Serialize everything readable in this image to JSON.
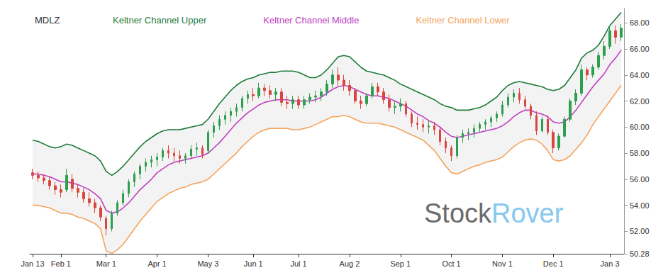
{
  "chart_data": {
    "type": "ohlc",
    "title": "MDLZ",
    "watermark": [
      "Stock",
      "Rover"
    ],
    "legend": "top",
    "grid": false,
    "categories": [
      "Jan 13",
      null,
      null,
      null,
      null,
      "Feb 1",
      null,
      null,
      null,
      null,
      null,
      null,
      null,
      "Mar 1",
      null,
      null,
      null,
      null,
      null,
      null,
      null,
      null,
      "Apr 1",
      null,
      null,
      null,
      null,
      null,
      null,
      null,
      null,
      "May 3",
      null,
      null,
      null,
      null,
      null,
      null,
      null,
      "Jun 1",
      null,
      null,
      null,
      null,
      null,
      null,
      null,
      "Jul 1",
      null,
      null,
      null,
      null,
      null,
      null,
      null,
      null,
      "Aug 2",
      null,
      null,
      null,
      null,
      null,
      null,
      null,
      null,
      "Sep 1",
      null,
      null,
      null,
      null,
      null,
      null,
      null,
      null,
      "Oct 1",
      null,
      null,
      null,
      null,
      null,
      null,
      null,
      null,
      "Nov 1",
      null,
      null,
      null,
      null,
      null,
      null,
      null,
      null,
      "Dec 1",
      null,
      null,
      null,
      null,
      null,
      null,
      null,
      null,
      null,
      "Jan 3",
      null,
      null
    ],
    "ylim": [
      50.28,
      69.1
    ],
    "yticks": [
      {
        "value": 50.28,
        "label": "50.28"
      },
      {
        "value": 52,
        "label": "52.00"
      },
      {
        "value": 54,
        "label": "54.00"
      },
      {
        "value": 56,
        "label": "56.00"
      },
      {
        "value": 58,
        "label": "58.00"
      },
      {
        "value": 60,
        "label": "60.00"
      },
      {
        "value": 62,
        "label": "62.00"
      },
      {
        "value": 64,
        "label": "64.00"
      },
      {
        "value": 66,
        "label": "66.00"
      },
      {
        "value": 68,
        "label": "68.00"
      }
    ],
    "series": [
      {
        "type": "ohlc",
        "open": [
          56.5,
          56.3,
          56.1,
          55.9,
          55.5,
          55.2,
          55.2,
          56.0,
          55.3,
          55.0,
          54.5,
          54.2,
          53.8,
          53.0,
          52.2,
          53.4,
          54.2,
          54.9,
          55.8,
          56.4,
          57.0,
          57.3,
          57.5,
          57.7,
          58.2,
          58.0,
          57.8,
          57.6,
          57.8,
          58.3,
          58.4,
          58.2,
          59.6,
          60.1,
          60.6,
          60.9,
          61.2,
          61.5,
          62.2,
          62.5,
          62.4,
          63.0,
          62.8,
          62.5,
          62.7,
          61.9,
          61.8,
          62.1,
          61.7,
          62.1,
          62.3,
          62.4,
          62.7,
          63.3,
          64.0,
          63.6,
          63.2,
          62.8,
          62.0,
          61.8,
          62.4,
          63.1,
          62.7,
          62.1,
          61.5,
          61.6,
          61.8,
          61.0,
          60.3,
          60.2,
          60.0,
          60.1,
          59.8,
          58.9,
          58.4,
          57.8,
          59.2,
          59.5,
          59.6,
          59.9,
          60.2,
          60.4,
          60.7,
          61.0,
          61.7,
          62.3,
          62.6,
          62.1,
          61.6,
          60.9,
          59.7,
          60.6,
          59.6,
          58.4,
          59.3,
          60.6,
          62.0,
          62.6,
          64.4,
          64.0,
          64.6,
          65.5,
          66.2,
          67.4,
          66.9
        ],
        "high": [
          56.8,
          56.6,
          56.4,
          56.2,
          55.8,
          55.6,
          56.8,
          56.4,
          55.6,
          55.3,
          55.0,
          54.5,
          54.0,
          53.2,
          53.6,
          54.4,
          55.2,
          56.0,
          56.6,
          57.2,
          57.6,
          57.8,
          58.0,
          58.4,
          58.6,
          58.4,
          58.2,
          58.0,
          58.6,
          58.8,
          58.6,
          59.8,
          60.4,
          60.9,
          61.2,
          61.5,
          61.8,
          62.4,
          62.8,
          63.0,
          63.4,
          63.3,
          63.2,
          63.0,
          63.0,
          62.4,
          62.4,
          62.4,
          62.4,
          62.6,
          62.8,
          63.0,
          63.6,
          64.4,
          64.6,
          64.0,
          63.6,
          63.0,
          62.4,
          62.6,
          63.4,
          63.4,
          63.0,
          62.5,
          62.0,
          62.2,
          62.0,
          61.2,
          60.8,
          60.6,
          60.5,
          60.4,
          60.0,
          59.2,
          58.6,
          59.4,
          59.8,
          59.9,
          60.2,
          60.4,
          60.6,
          60.9,
          61.2,
          62.0,
          62.6,
          62.9,
          63.0,
          62.4,
          61.8,
          61.2,
          60.8,
          60.9,
          59.8,
          59.5,
          60.8,
          62.2,
          62.9,
          64.8,
          64.6,
          64.8,
          65.8,
          66.6,
          67.8,
          67.8,
          67.9
        ],
        "low": [
          56.0,
          55.8,
          55.6,
          55.2,
          54.8,
          54.6,
          55.0,
          55.0,
          54.6,
          54.2,
          53.9,
          53.4,
          52.8,
          51.7,
          52.0,
          53.2,
          54.0,
          54.6,
          55.4,
          56.0,
          56.6,
          56.9,
          57.0,
          57.4,
          57.6,
          57.4,
          57.2,
          57.2,
          57.6,
          57.8,
          57.6,
          58.0,
          59.2,
          59.8,
          60.2,
          60.4,
          60.8,
          61.2,
          61.8,
          62.0,
          62.2,
          62.4,
          62.2,
          62.0,
          61.6,
          61.4,
          61.4,
          61.4,
          61.4,
          61.8,
          61.9,
          62.0,
          62.4,
          63.0,
          63.2,
          62.8,
          62.4,
          61.8,
          61.4,
          61.6,
          62.2,
          62.4,
          61.8,
          61.2,
          61.0,
          61.2,
          60.8,
          60.0,
          59.8,
          59.6,
          59.5,
          59.4,
          58.6,
          58.0,
          57.4,
          57.6,
          58.8,
          59.0,
          59.2,
          59.6,
          59.8,
          60.0,
          60.4,
          60.8,
          61.5,
          61.9,
          61.8,
          61.4,
          60.6,
          59.4,
          59.6,
          59.4,
          58.0,
          58.2,
          59.2,
          60.4,
          61.7,
          62.4,
          63.6,
          63.8,
          64.4,
          65.2,
          66.0,
          66.4,
          66.6
        ],
        "close": [
          56.3,
          56.1,
          55.9,
          55.5,
          55.2,
          55.0,
          56.3,
          55.3,
          55.0,
          54.5,
          54.2,
          53.8,
          53.1,
          52.2,
          53.4,
          54.2,
          54.9,
          55.8,
          56.4,
          57.0,
          57.3,
          57.5,
          57.7,
          58.2,
          58.0,
          57.8,
          57.6,
          57.8,
          58.3,
          58.4,
          57.9,
          59.6,
          60.1,
          60.6,
          60.9,
          61.2,
          61.5,
          62.2,
          62.5,
          62.4,
          63.0,
          62.8,
          62.5,
          62.7,
          61.9,
          61.8,
          62.1,
          61.7,
          62.1,
          62.3,
          62.4,
          62.7,
          63.3,
          64.0,
          63.6,
          63.2,
          62.8,
          62.0,
          61.8,
          62.4,
          63.1,
          62.7,
          62.1,
          61.5,
          61.6,
          61.8,
          61.0,
          60.3,
          60.2,
          60.0,
          60.1,
          59.8,
          58.9,
          58.4,
          57.8,
          59.2,
          59.5,
          59.6,
          59.9,
          60.2,
          60.4,
          60.7,
          61.0,
          61.7,
          62.3,
          62.6,
          62.1,
          61.6,
          60.9,
          59.7,
          60.6,
          59.6,
          58.4,
          59.3,
          60.6,
          62.0,
          62.6,
          64.4,
          64.0,
          64.6,
          65.5,
          66.2,
          67.4,
          66.9,
          67.6
        ]
      },
      {
        "name": "Keltner Channel Upper",
        "type": "line",
        "color": "#1e7b3a",
        "values": [
          59.0,
          58.9,
          58.7,
          58.5,
          58.4,
          58.5,
          58.7,
          58.6,
          58.4,
          58.2,
          58.0,
          57.8,
          57.4,
          56.6,
          56.3,
          56.6,
          57.0,
          57.5,
          58.0,
          58.5,
          58.9,
          59.2,
          59.5,
          59.7,
          59.8,
          59.8,
          59.8,
          59.9,
          60.0,
          60.1,
          60.2,
          60.6,
          61.2,
          61.8,
          62.3,
          62.8,
          63.2,
          63.5,
          63.7,
          63.8,
          64.0,
          64.1,
          64.2,
          64.2,
          64.3,
          64.3,
          64.3,
          64.2,
          64.0,
          63.8,
          63.8,
          64.0,
          64.4,
          64.9,
          65.4,
          65.5,
          65.4,
          65.0,
          64.6,
          64.3,
          64.2,
          64.1,
          64.0,
          63.8,
          63.6,
          63.3,
          63.1,
          62.9,
          62.7,
          62.5,
          62.3,
          62.1,
          61.8,
          61.6,
          61.5,
          61.3,
          61.3,
          61.3,
          61.4,
          61.5,
          61.7,
          62.0,
          62.3,
          62.8,
          63.2,
          63.4,
          63.5,
          63.4,
          63.3,
          63.2,
          63.1,
          62.9,
          62.8,
          62.9,
          63.2,
          63.8,
          64.4,
          65.3,
          65.7,
          65.9,
          66.3,
          67.0,
          67.8,
          68.3,
          68.8
        ]
      },
      {
        "name": "Keltner Channel Middle",
        "type": "line",
        "color": "#c23fc2",
        "values": [
          56.4,
          56.4,
          56.3,
          56.2,
          56.0,
          55.8,
          55.8,
          55.7,
          55.6,
          55.4,
          55.2,
          54.9,
          54.5,
          53.6,
          53.4,
          53.5,
          53.8,
          54.2,
          54.7,
          55.2,
          55.6,
          56.0,
          56.5,
          56.8,
          57.1,
          57.3,
          57.4,
          57.5,
          57.6,
          57.7,
          57.8,
          58.0,
          58.4,
          58.8,
          59.3,
          59.8,
          60.3,
          60.7,
          61.1,
          61.4,
          61.7,
          61.9,
          62.0,
          62.1,
          62.1,
          62.1,
          62.0,
          62.0,
          62.0,
          62.0,
          62.1,
          62.3,
          62.6,
          62.9,
          63.1,
          63.2,
          63.1,
          62.9,
          62.7,
          62.5,
          62.4,
          62.4,
          62.3,
          62.2,
          62.0,
          61.8,
          61.6,
          61.3,
          61.0,
          60.8,
          60.5,
          60.3,
          60.0,
          59.6,
          59.3,
          59.2,
          59.3,
          59.4,
          59.5,
          59.6,
          59.7,
          59.8,
          59.9,
          60.1,
          60.4,
          60.8,
          61.1,
          61.3,
          61.3,
          61.1,
          61.0,
          60.8,
          60.4,
          60.3,
          60.4,
          60.8,
          61.3,
          61.9,
          62.5,
          63.1,
          63.6,
          64.1,
          64.8,
          65.3,
          65.9
        ]
      },
      {
        "name": "Keltner Channel Lower",
        "type": "line",
        "color": "#f4a460",
        "values": [
          54.0,
          54.0,
          53.9,
          53.8,
          53.6,
          53.4,
          53.4,
          53.3,
          53.1,
          53.0,
          52.8,
          52.6,
          52.2,
          50.5,
          50.3,
          50.6,
          51.0,
          51.6,
          52.2,
          52.8,
          53.3,
          53.8,
          54.3,
          54.6,
          54.9,
          55.1,
          55.3,
          55.4,
          55.6,
          55.7,
          55.8,
          56.0,
          56.4,
          56.8,
          57.2,
          57.6,
          58.0,
          58.5,
          58.9,
          59.3,
          59.6,
          59.8,
          59.9,
          59.9,
          59.9,
          59.9,
          59.8,
          59.8,
          59.9,
          60.0,
          60.2,
          60.4,
          60.6,
          60.8,
          60.8,
          60.9,
          60.8,
          60.6,
          60.4,
          60.3,
          60.3,
          60.3,
          60.2,
          60.1,
          60.0,
          59.8,
          59.6,
          59.4,
          59.2,
          59.0,
          58.6,
          58.2,
          57.6,
          57.0,
          56.5,
          56.4,
          56.6,
          56.8,
          57.0,
          57.1,
          57.3,
          57.4,
          57.5,
          57.7,
          58.1,
          58.5,
          58.8,
          59.0,
          59.1,
          59.0,
          58.7,
          58.2,
          57.5,
          57.4,
          57.5,
          57.8,
          58.3,
          58.8,
          59.4,
          60.2,
          60.8,
          61.4,
          62.0,
          62.6,
          63.2
        ]
      }
    ]
  }
}
